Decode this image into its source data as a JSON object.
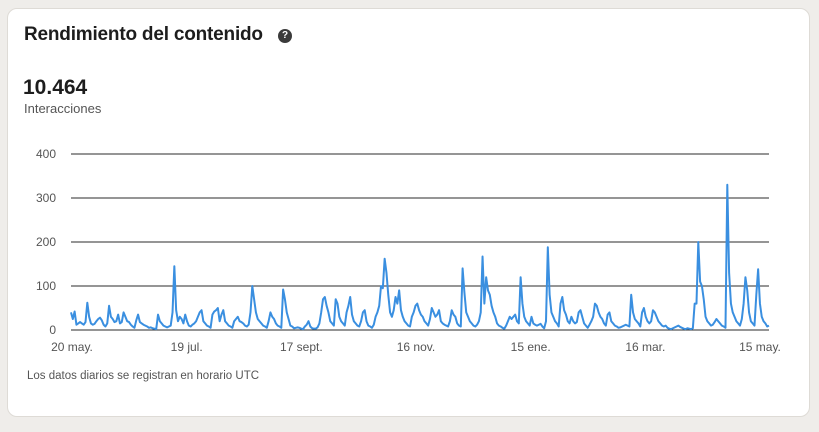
{
  "card": {
    "title": "Rendimiento del contenido",
    "help_icon": "question-circle-icon",
    "metric_value": "10.464",
    "metric_label": "Interacciones",
    "footnote": "Los datos diarios se registran en horario UTC"
  },
  "colors": {
    "line": "#3a8fe0",
    "grid": "#2b2b2b",
    "text": "#555555",
    "title": "#1d1d1d"
  },
  "chart_data": {
    "type": "line",
    "title": "",
    "xlabel": "",
    "ylabel": "",
    "ylim": [
      0,
      400
    ],
    "yticks": [
      0,
      100,
      200,
      300,
      400
    ],
    "xticks": [
      "20 may.",
      "19 jul.",
      "17 sept.",
      "16 nov.",
      "15 ene.",
      "16 mar.",
      "15 may."
    ],
    "grid": true,
    "series": [
      {
        "name": "",
        "values": [
          40,
          25,
          42,
          12,
          15,
          18,
          15,
          12,
          18,
          62,
          30,
          15,
          12,
          14,
          20,
          25,
          28,
          22,
          12,
          8,
          15,
          55,
          30,
          25,
          18,
          20,
          35,
          15,
          18,
          40,
          30,
          20,
          18,
          12,
          8,
          5,
          22,
          35,
          18,
          15,
          12,
          10,
          8,
          5,
          6,
          4,
          3,
          2,
          35,
          20,
          15,
          10,
          8,
          6,
          8,
          10,
          40,
          145,
          45,
          20,
          30,
          25,
          15,
          35,
          20,
          10,
          8,
          12,
          15,
          20,
          30,
          40,
          45,
          20,
          15,
          10,
          8,
          5,
          35,
          42,
          45,
          50,
          20,
          35,
          45,
          20,
          15,
          10,
          8,
          5,
          20,
          25,
          30,
          20,
          18,
          15,
          10,
          8,
          12,
          40,
          100,
          70,
          40,
          25,
          20,
          15,
          10,
          8,
          5,
          20,
          40,
          30,
          25,
          15,
          10,
          8,
          5,
          92,
          70,
          40,
          25,
          10,
          8,
          4,
          5,
          6,
          5,
          3,
          2,
          8,
          12,
          20,
          8,
          4,
          3,
          3,
          6,
          15,
          40,
          70,
          75,
          55,
          40,
          20,
          15,
          10,
          70,
          60,
          30,
          20,
          15,
          10,
          40,
          55,
          75,
          35,
          20,
          15,
          10,
          8,
          20,
          40,
          45,
          20,
          10,
          8,
          5,
          12,
          30,
          40,
          55,
          100,
          95,
          162,
          130,
          80,
          40,
          30,
          45,
          75,
          60,
          90,
          45,
          30,
          20,
          15,
          10,
          8,
          30,
          40,
          55,
          60,
          45,
          35,
          30,
          20,
          15,
          10,
          25,
          50,
          40,
          30,
          35,
          45,
          20,
          15,
          12,
          10,
          8,
          20,
          45,
          35,
          30,
          15,
          10,
          8,
          140,
          85,
          40,
          30,
          20,
          15,
          10,
          8,
          12,
          20,
          40,
          167,
          60,
          120,
          90,
          80,
          55,
          40,
          30,
          15,
          10,
          8,
          5,
          3,
          10,
          20,
          30,
          25,
          30,
          35,
          20,
          15,
          120,
          60,
          30,
          20,
          15,
          10,
          30,
          15,
          12,
          10,
          12,
          14,
          8,
          4,
          20,
          188,
          80,
          40,
          30,
          20,
          15,
          8,
          60,
          75,
          45,
          35,
          20,
          15,
          30,
          20,
          15,
          18,
          40,
          45,
          30,
          15,
          10,
          5,
          12,
          20,
          30,
          60,
          55,
          40,
          30,
          25,
          15,
          10,
          35,
          40,
          20,
          15,
          10,
          8,
          5,
          6,
          8,
          10,
          12,
          10,
          8,
          80,
          40,
          25,
          20,
          15,
          8,
          40,
          50,
          30,
          20,
          15,
          20,
          45,
          40,
          30,
          20,
          15,
          10,
          8,
          10,
          5,
          3,
          2,
          4,
          6,
          8,
          10,
          7,
          5,
          3,
          2,
          4,
          3,
          2,
          4,
          60,
          60,
          200,
          110,
          100,
          70,
          30,
          20,
          15,
          10,
          12,
          18,
          25,
          20,
          15,
          10,
          8,
          5,
          330,
          130,
          60,
          40,
          30,
          20,
          15,
          10,
          25,
          60,
          120,
          90,
          40,
          20,
          15,
          10,
          80,
          138,
          60,
          30,
          20,
          15,
          8,
          10
        ]
      }
    ]
  }
}
